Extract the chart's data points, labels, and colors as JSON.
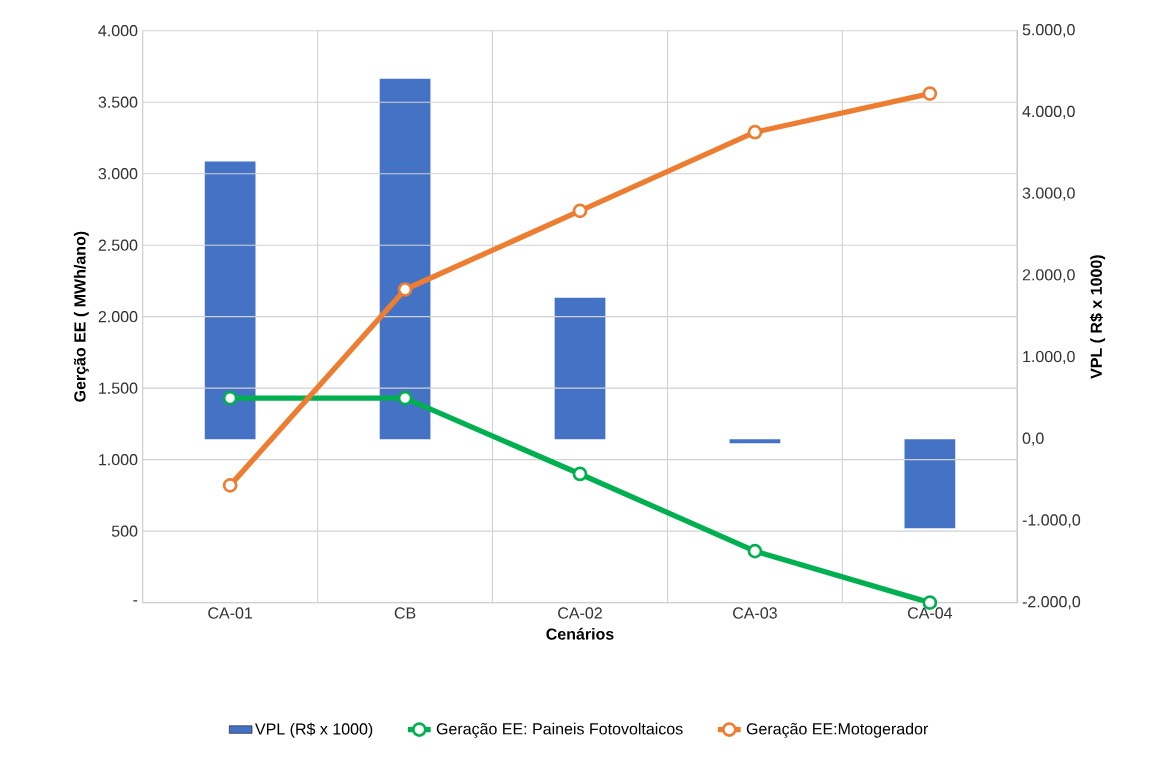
{
  "chart_data": {
    "type": "line",
    "xlabel": "Cenários",
    "ylabel": "Gerção EE ( MWh/ano)",
    "y2label": "VPL ( R$ x 1000)",
    "categories": [
      "CA-01",
      "CB",
      "CA-02",
      "CA-03",
      "CA-04"
    ],
    "series": [
      {
        "name": "VPL (R$ x 1000)",
        "type": "bar",
        "axis": "y2",
        "color": "#4472c4",
        "values": [
          3400,
          4410,
          1730,
          -50,
          -1090
        ]
      },
      {
        "name": "Geração EE: Paineis Fotovoltaicos",
        "color": "#00b050",
        "values": [
          1430,
          1430,
          900,
          360,
          0
        ]
      },
      {
        "name": "Geração EE:Motogerador",
        "color": "#ed7d31",
        "values": [
          820,
          2190,
          2740,
          3290,
          3560
        ]
      }
    ],
    "ylim": [
      0,
      4000
    ],
    "yticks": [
      {
        "value": 0,
        "label": "-"
      },
      {
        "value": 500,
        "label": "500"
      },
      {
        "value": 1000,
        "label": "1.000"
      },
      {
        "value": 1500,
        "label": "1.500"
      },
      {
        "value": 2000,
        "label": "2.000"
      },
      {
        "value": 2500,
        "label": "2.500"
      },
      {
        "value": 3000,
        "label": "3.000"
      },
      {
        "value": 3500,
        "label": "3.500"
      },
      {
        "value": 4000,
        "label": "4.000"
      }
    ],
    "y2lim": [
      -2000,
      5000
    ],
    "y2ticks": [
      {
        "value": -2000,
        "label": "-2.000,0"
      },
      {
        "value": -1000,
        "label": "-1.000,0"
      },
      {
        "value": 0,
        "label": "0,0"
      },
      {
        "value": 1000,
        "label": "1.000,0"
      },
      {
        "value": 2000,
        "label": "2.000,0"
      },
      {
        "value": 3000,
        "label": "3.000,0"
      },
      {
        "value": 4000,
        "label": "4.000,0"
      },
      {
        "value": 5000,
        "label": "5.000,0"
      }
    ],
    "grid": true,
    "legend": "bottom",
    "marker": "circle"
  }
}
